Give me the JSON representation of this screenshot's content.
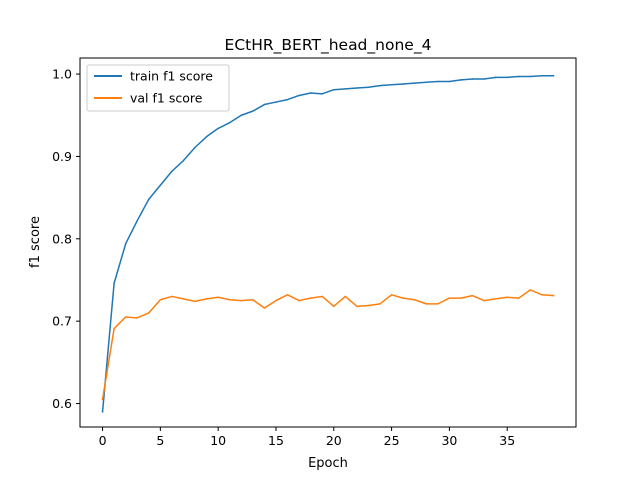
{
  "chart_data": {
    "type": "line",
    "title": "ECtHR_BERT_head_none_4",
    "xlabel": "Epoch",
    "ylabel": "f1 score",
    "xlim": [
      -1.95,
      40.95
    ],
    "ylim": [
      0.5715,
      1.0195
    ],
    "xticks": [
      0,
      5,
      10,
      15,
      20,
      25,
      30,
      35
    ],
    "xtick_labels": [
      "0",
      "5",
      "10",
      "15",
      "20",
      "25",
      "30",
      "35"
    ],
    "yticks": [
      0.6,
      0.7,
      0.8,
      0.9,
      1.0
    ],
    "ytick_labels": [
      "0.6",
      "0.7",
      "0.8",
      "0.9",
      "1.0"
    ],
    "grid": false,
    "legend_position": "top-left",
    "x": [
      0,
      1,
      2,
      3,
      4,
      5,
      6,
      7,
      8,
      9,
      10,
      11,
      12,
      13,
      14,
      15,
      16,
      17,
      18,
      19,
      20,
      21,
      22,
      23,
      24,
      25,
      26,
      27,
      28,
      29,
      30,
      31,
      32,
      33,
      34,
      35,
      36,
      37,
      38,
      39
    ],
    "series": [
      {
        "name": "train f1 score",
        "color": "#1f77b4",
        "values": [
          0.59,
          0.746,
          0.794,
          0.822,
          0.848,
          0.865,
          0.882,
          0.895,
          0.911,
          0.924,
          0.934,
          0.941,
          0.95,
          0.955,
          0.963,
          0.966,
          0.969,
          0.974,
          0.977,
          0.976,
          0.981,
          0.982,
          0.983,
          0.984,
          0.986,
          0.987,
          0.988,
          0.989,
          0.99,
          0.991,
          0.991,
          0.993,
          0.994,
          0.994,
          0.996,
          0.996,
          0.997,
          0.997,
          0.998,
          0.998
        ]
      },
      {
        "name": "val f1 score",
        "color": "#ff7f0e",
        "values": [
          0.605,
          0.691,
          0.705,
          0.704,
          0.71,
          0.726,
          0.73,
          0.727,
          0.724,
          0.727,
          0.729,
          0.726,
          0.725,
          0.726,
          0.716,
          0.725,
          0.732,
          0.725,
          0.728,
          0.73,
          0.718,
          0.73,
          0.718,
          0.719,
          0.721,
          0.732,
          0.728,
          0.726,
          0.721,
          0.721,
          0.728,
          0.728,
          0.731,
          0.725,
          0.727,
          0.729,
          0.728,
          0.738,
          0.732,
          0.731
        ]
      }
    ]
  }
}
